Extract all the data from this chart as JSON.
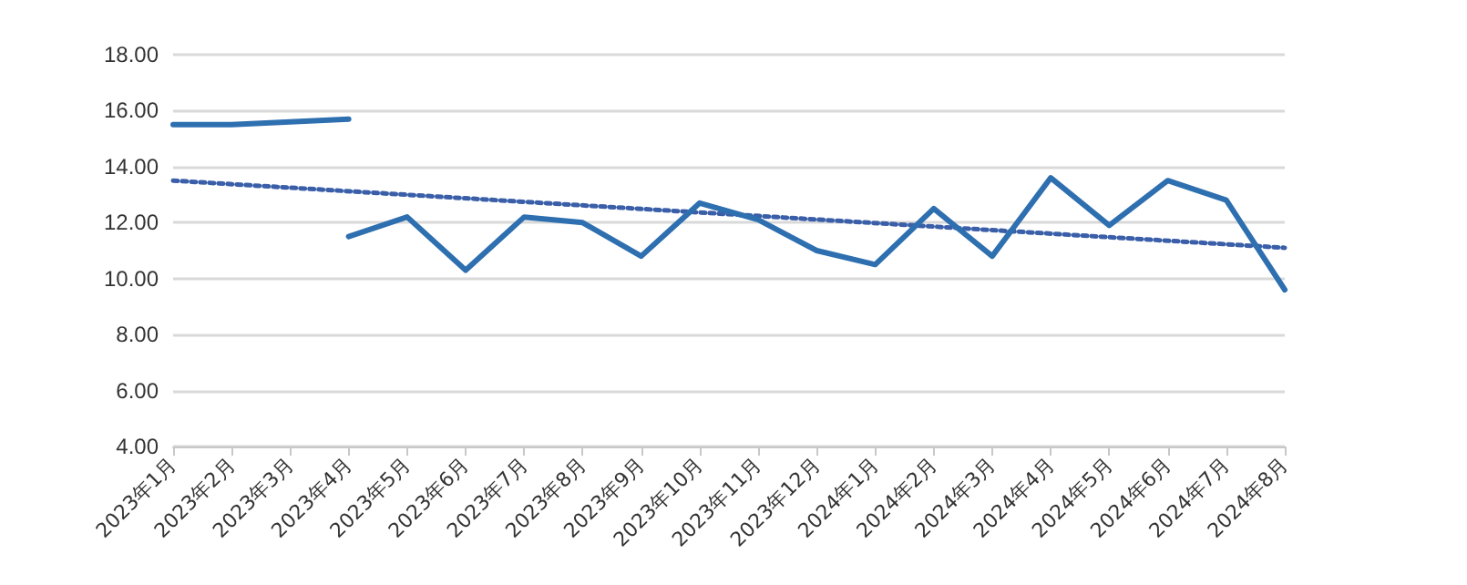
{
  "chart_data": {
    "type": "line",
    "categories": [
      "2023年1月",
      "2023年2月",
      "2023年3月",
      "2023年4月",
      "2023年5月",
      "2023年6月",
      "2023年7月",
      "2023年8月",
      "2023年9月",
      "2023年10月",
      "2023年11月",
      "2023年12月",
      "2024年1月",
      "2024年2月",
      "2024年3月",
      "2024年4月",
      "2024年5月",
      "2024年6月",
      "2024年7月",
      "2024年8月"
    ],
    "series": [
      {
        "color": "#2e6fb0",
        "line_style": "solid",
        "values": [
          15.5,
          15.5,
          15.6,
          15.7,
          null,
          null,
          null,
          null,
          null,
          null,
          null,
          null,
          null,
          null,
          null,
          null,
          null,
          null,
          null,
          null
        ]
      },
      {
        "color": "#2e6fb0",
        "line_style": "solid",
        "values": [
          null,
          null,
          null,
          11.5,
          12.2,
          10.3,
          12.2,
          12.0,
          10.8,
          12.7,
          12.1,
          11.0,
          10.5,
          12.5,
          10.8,
          13.6,
          11.9,
          13.5,
          12.8,
          9.6
        ]
      },
      {
        "color": "#3a5fa8",
        "line_style": "dotted",
        "values": [
          13.5,
          null,
          null,
          null,
          null,
          null,
          null,
          null,
          null,
          null,
          null,
          null,
          null,
          null,
          null,
          null,
          null,
          null,
          null,
          11.1
        ]
      }
    ],
    "ylim": [
      4,
      18
    ],
    "yticks": [
      {
        "value": 4,
        "label": "4.00"
      },
      {
        "value": 6,
        "label": "6.00"
      },
      {
        "value": 8,
        "label": "8.00"
      },
      {
        "value": 10,
        "label": "10.00"
      },
      {
        "value": 12,
        "label": "12.00"
      },
      {
        "value": 14,
        "label": "14.00"
      },
      {
        "value": 16,
        "label": "16.00"
      },
      {
        "value": 18,
        "label": "18.00"
      }
    ],
    "grid": "y",
    "marker": "none"
  }
}
